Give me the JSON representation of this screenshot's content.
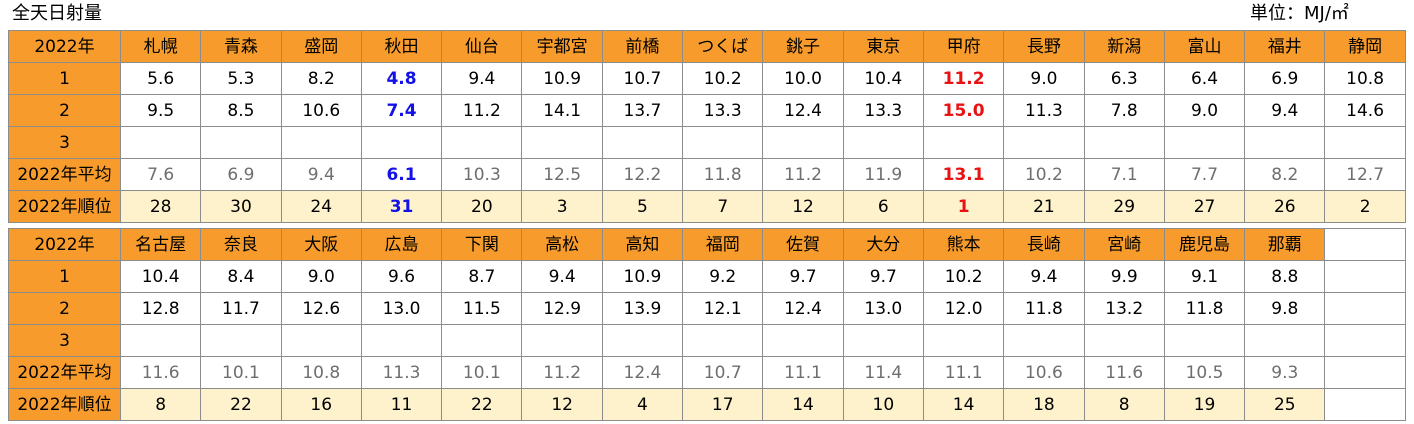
{
  "title": "全天日射量",
  "unit": "単位：MJ/㎡",
  "colors": {
    "header": "#f79c2c",
    "rank_row": "#fdf2cc",
    "low_highlight": "#1212e8",
    "high_highlight": "#e81212",
    "average_text": "#6e6e6e"
  },
  "row_labels": [
    "2022年",
    "1",
    "2",
    "3",
    "2022年平均",
    "2022年順位"
  ],
  "tables": [
    {
      "cities": [
        "札幌",
        "青森",
        "盛岡",
        "秋田",
        "仙台",
        "宇都宮",
        "前橋",
        "つくば",
        "銚子",
        "東京",
        "甲府",
        "長野",
        "新潟",
        "富山",
        "福井",
        "静岡"
      ],
      "rows": [
        [
          "5.6",
          "5.3",
          "8.2",
          "4.8",
          "9.4",
          "10.9",
          "10.7",
          "10.2",
          "10.0",
          "10.4",
          "11.2",
          "9.0",
          "6.3",
          "6.4",
          "6.9",
          "10.8"
        ],
        [
          "9.5",
          "8.5",
          "10.6",
          "7.4",
          "11.2",
          "14.1",
          "13.7",
          "13.3",
          "12.4",
          "13.3",
          "15.0",
          "11.3",
          "7.8",
          "9.0",
          "9.4",
          "14.6"
        ],
        [
          "",
          "",
          "",
          "",
          "",
          "",
          "",
          "",
          "",
          "",
          "",
          "",
          "",
          "",
          "",
          ""
        ],
        [
          "7.6",
          "6.9",
          "9.4",
          "6.1",
          "10.3",
          "12.5",
          "12.2",
          "11.8",
          "11.2",
          "11.9",
          "13.1",
          "10.2",
          "7.1",
          "7.7",
          "8.2",
          "12.7"
        ],
        [
          "28",
          "30",
          "24",
          "31",
          "20",
          "3",
          "5",
          "7",
          "12",
          "6",
          "1",
          "21",
          "29",
          "27",
          "26",
          "2"
        ]
      ],
      "low_index": 3,
      "high_index": 10
    },
    {
      "cities": [
        "名古屋",
        "奈良",
        "大阪",
        "広島",
        "下関",
        "高松",
        "高知",
        "福岡",
        "佐賀",
        "大分",
        "熊本",
        "長崎",
        "宮崎",
        "鹿児島",
        "那覇"
      ],
      "rows": [
        [
          "10.4",
          "8.4",
          "9.0",
          "9.6",
          "8.7",
          "9.4",
          "10.9",
          "9.2",
          "9.7",
          "9.7",
          "10.2",
          "9.4",
          "9.9",
          "9.1",
          "8.8"
        ],
        [
          "12.8",
          "11.7",
          "12.6",
          "13.0",
          "11.5",
          "12.9",
          "13.9",
          "12.1",
          "12.4",
          "13.0",
          "12.0",
          "11.8",
          "13.2",
          "11.8",
          "9.8"
        ],
        [
          "",
          "",
          "",
          "",
          "",
          "",
          "",
          "",
          "",
          "",
          "",
          "",
          "",
          "",
          ""
        ],
        [
          "11.6",
          "10.1",
          "10.8",
          "11.3",
          "10.1",
          "11.2",
          "12.4",
          "10.7",
          "11.1",
          "11.4",
          "11.1",
          "10.6",
          "11.6",
          "10.5",
          "9.3"
        ],
        [
          "8",
          "22",
          "16",
          "11",
          "22",
          "12",
          "4",
          "17",
          "14",
          "10",
          "14",
          "18",
          "8",
          "19",
          "25"
        ]
      ],
      "low_index": -1,
      "high_index": -1
    }
  ]
}
